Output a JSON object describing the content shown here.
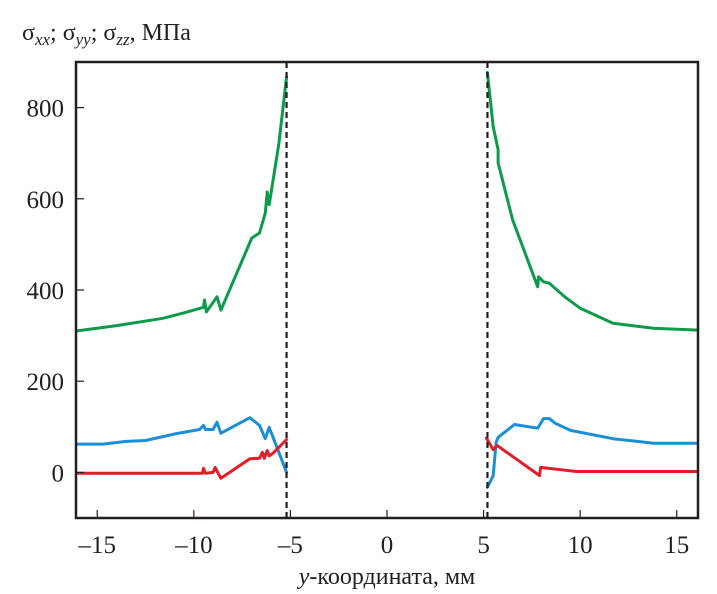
{
  "chart_data": {
    "type": "line",
    "title": "",
    "ylabel": {
      "parts": [
        {
          "text": "σ",
          "sub": "xx"
        },
        {
          "text": "; σ",
          "sub": "yy"
        },
        {
          "text": "; σ",
          "sub": "zz"
        },
        {
          "text": ", МПа",
          "sub": ""
        }
      ],
      "full": "σxx; σyy; σzz, МПа"
    },
    "xlabel": {
      "var": "y",
      "rest": "-координата, мм",
      "full": "y-координата, мм"
    },
    "xlim": [
      -16.1,
      16.1
    ],
    "ylim": [
      -100,
      900
    ],
    "xticks": [
      -15,
      -10,
      -5,
      0,
      5,
      10,
      15
    ],
    "xtick_labels": [
      "–15",
      "–10",
      "–5",
      "0",
      "5",
      "10",
      "15"
    ],
    "yticks": [
      0,
      200,
      400,
      600,
      800
    ],
    "ytick_labels": [
      "0",
      "200",
      "400",
      "600",
      "800"
    ],
    "grid": false,
    "legend": "none",
    "vlines": [
      {
        "x": -5.2,
        "style": "dashed",
        "color": "#231f20"
      },
      {
        "x": 5.2,
        "style": "dashed",
        "color": "#231f20"
      }
    ],
    "series": [
      {
        "name": "green",
        "color": "#0d9a4b",
        "segments": [
          [
            [
              -16.1,
              310
            ],
            [
              -14,
              322
            ],
            [
              -11.6,
              338
            ],
            [
              -10.5,
              350
            ],
            [
              -9.5,
              362
            ],
            [
              -9.45,
              378
            ],
            [
              -9.35,
              352
            ],
            [
              -8.8,
              385
            ],
            [
              -8.6,
              356
            ],
            [
              -7.0,
              514
            ],
            [
              -6.6,
              525
            ],
            [
              -6.3,
              569
            ],
            [
              -6.2,
              615
            ],
            [
              -6.1,
              587
            ],
            [
              -5.6,
              720
            ],
            [
              -5.2,
              868
            ]
          ],
          [
            [
              5.2,
              877
            ],
            [
              5.5,
              758
            ],
            [
              5.75,
              708
            ],
            [
              5.75,
              679
            ],
            [
              6.5,
              554
            ],
            [
              7.8,
              407
            ],
            [
              7.85,
              429
            ],
            [
              8.1,
              418
            ],
            [
              8.4,
              415
            ],
            [
              9.2,
              385
            ],
            [
              10.0,
              360
            ],
            [
              11.7,
              327
            ],
            [
              13.8,
              316
            ],
            [
              16.1,
              312
            ]
          ]
        ]
      },
      {
        "name": "blue",
        "color": "#1b8fd5",
        "segments": [
          [
            [
              -16.1,
              62
            ],
            [
              -14.7,
              62
            ],
            [
              -13.5,
              68
            ],
            [
              -12.5,
              70
            ],
            [
              -10.9,
              85
            ],
            [
              -9.7,
              94
            ],
            [
              -9.5,
              103
            ],
            [
              -9.4,
              94
            ],
            [
              -9.0,
              94
            ],
            [
              -8.8,
              110
            ],
            [
              -8.6,
              86
            ],
            [
              -7.1,
              120
            ],
            [
              -6.6,
              103
            ],
            [
              -6.3,
              74
            ],
            [
              -6.1,
              99
            ],
            [
              -5.2,
              0
            ]
          ],
          [
            [
              5.2,
              -33
            ],
            [
              5.5,
              -7
            ],
            [
              5.65,
              66
            ],
            [
              5.75,
              77
            ],
            [
              6.6,
              105
            ],
            [
              7.8,
              97
            ],
            [
              8.1,
              118
            ],
            [
              8.4,
              118
            ],
            [
              8.7,
              108
            ],
            [
              9.5,
              92
            ],
            [
              11.7,
              74
            ],
            [
              13.8,
              64
            ],
            [
              16.1,
              64
            ]
          ]
        ]
      },
      {
        "name": "red",
        "color": "#e31e2a",
        "segments": [
          [
            [
              -16.1,
              -2
            ],
            [
              -9.55,
              -2
            ],
            [
              -9.5,
              9
            ],
            [
              -9.4,
              -2
            ],
            [
              -9.0,
              0
            ],
            [
              -8.9,
              11
            ],
            [
              -8.6,
              -13
            ],
            [
              -7.1,
              30
            ],
            [
              -6.6,
              31
            ],
            [
              -6.45,
              44
            ],
            [
              -6.35,
              31
            ],
            [
              -6.2,
              48
            ],
            [
              -6.1,
              36
            ],
            [
              -5.9,
              42
            ],
            [
              -5.2,
              72
            ]
          ],
          [
            [
              5.15,
              75
            ],
            [
              5.5,
              50
            ],
            [
              5.7,
              59
            ],
            [
              7.9,
              -7
            ],
            [
              7.95,
              11
            ],
            [
              9.8,
              2
            ],
            [
              16.1,
              2
            ]
          ]
        ]
      }
    ]
  }
}
